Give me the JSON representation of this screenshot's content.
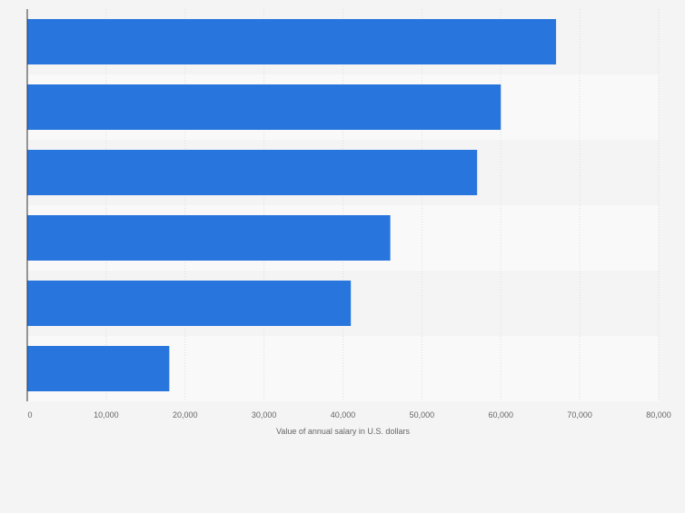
{
  "chart_data": {
    "type": "bar",
    "orientation": "horizontal",
    "title": "",
    "xlabel": "Value of annual salary in U.S. dollars",
    "ylabel": "",
    "categories": [
      "",
      "",
      "",
      "",
      "",
      ""
    ],
    "values": [
      67000,
      60000,
      57000,
      46000,
      41000,
      18000
    ],
    "xlim": [
      0,
      80000
    ],
    "xticks": [
      0,
      10000,
      20000,
      30000,
      40000,
      50000,
      60000,
      70000,
      80000
    ],
    "xtick_labels": [
      "0",
      "10,000",
      "20,000",
      "30,000",
      "40,000",
      "50,000",
      "60,000",
      "70,000",
      "80,000"
    ],
    "grid": true,
    "colors": {
      "bar": "#2876dd",
      "band_dark": "#f4f4f4",
      "band_light": "#f9f9f9",
      "grid": "#dddddd",
      "axis": "#333333",
      "tick_text": "#666666",
      "label_text": "#666666"
    }
  }
}
